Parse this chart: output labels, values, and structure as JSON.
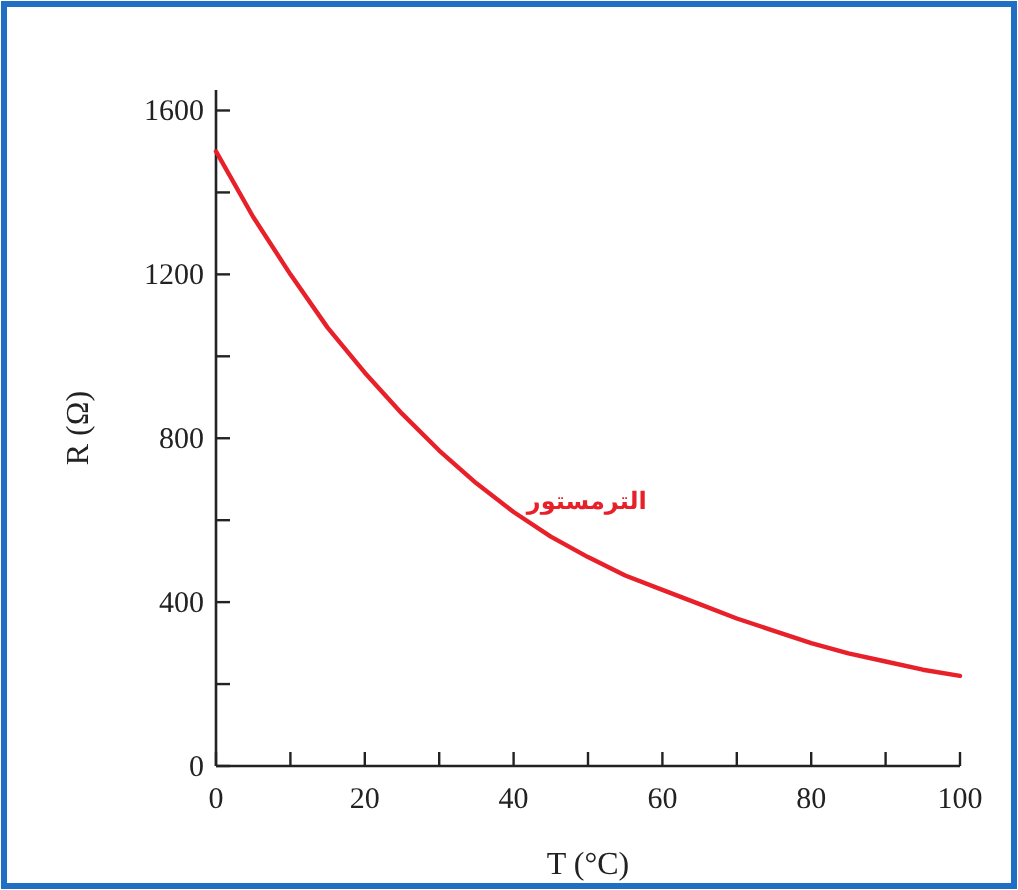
{
  "chart_data": {
    "type": "line",
    "xlabel": "T (°C)",
    "ylabel": "R (Ω)",
    "x": [
      0,
      5,
      10,
      15,
      20,
      25,
      30,
      35,
      40,
      45,
      50,
      55,
      60,
      65,
      70,
      75,
      80,
      85,
      90,
      95,
      100
    ],
    "series": [
      {
        "name": "الترمستور",
        "color": "#e8202a",
        "values": [
          1500,
          1340,
          1200,
          1070,
          960,
          860,
          770,
          690,
          620,
          560,
          510,
          465,
          430,
          395,
          360,
          330,
          300,
          275,
          255,
          235,
          220
        ]
      }
    ],
    "xlim": [
      0,
      100
    ],
    "ylim": [
      0,
      1650
    ],
    "xticks": [
      0,
      {
        "value": 10,
        "label": null
      },
      20,
      {
        "value": 30,
        "label": null
      },
      40,
      {
        "value": 50,
        "label": null
      },
      60,
      {
        "value": 70,
        "label": null
      },
      80,
      {
        "value": 90,
        "label": null
      },
      100
    ],
    "yticks": [
      0,
      {
        "value": 200,
        "label": null
      },
      400,
      {
        "value": 600,
        "label": null
      },
      800,
      {
        "value": 1000,
        "label": null
      },
      1200,
      {
        "value": 1400,
        "label": null
      },
      1600
    ],
    "grid": false,
    "marker": "none",
    "line_style": "solid"
  }
}
